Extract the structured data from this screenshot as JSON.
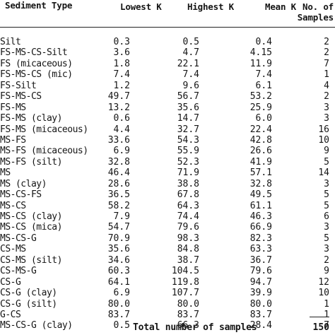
{
  "header": {
    "sediment_type": "Sediment Type",
    "lowest_k": "Lowest K",
    "highest_k": "Highest K",
    "mean_k": "Mean K",
    "samples_line1": "No. of",
    "samples_line2": "Samples"
  },
  "rows": [
    {
      "type": "Silt",
      "lowest": "0.3",
      "highest": "0.5",
      "mean": "0.4",
      "samples": "2"
    },
    {
      "type": "FS-MS-CS-Silt",
      "lowest": "3.6",
      "highest": "4.7",
      "mean": "4.15",
      "samples": "2"
    },
    {
      "type": "FS (micaceous)",
      "lowest": "1.8",
      "highest": "22.1",
      "mean": "11.9",
      "samples": "7"
    },
    {
      "type": "FS-MS-CS (mic)",
      "lowest": "7.4",
      "highest": "7.4",
      "mean": "7.4",
      "samples": "1"
    },
    {
      "type": "FS-Silt",
      "lowest": "1.2",
      "highest": "9.6",
      "mean": "6.1",
      "samples": "4"
    },
    {
      "type": "FS-MS-CS",
      "lowest": "49.7",
      "highest": "56.7",
      "mean": "53.2",
      "samples": "2"
    },
    {
      "type": "FS-MS",
      "lowest": "13.2",
      "highest": "35.6",
      "mean": "25.9",
      "samples": "3"
    },
    {
      "type": "FS-MS (clay)",
      "lowest": "0.6",
      "highest": "14.7",
      "mean": "6.0",
      "samples": "3"
    },
    {
      "type": "FS-MS (micaceous)",
      "lowest": "4.4",
      "highest": "32.7",
      "mean": "22.4",
      "samples": "16"
    },
    {
      "type": "MS-FS",
      "lowest": "33.6",
      "highest": "54.3",
      "mean": "42.8",
      "samples": "10"
    },
    {
      "type": "MS-FS (micaceous)",
      "lowest": "6.9",
      "highest": "55.9",
      "mean": "26.6",
      "samples": "9"
    },
    {
      "type": "MS-FS (silt)",
      "lowest": "32.8",
      "highest": "52.3",
      "mean": "41.9",
      "samples": "5"
    },
    {
      "type": "MS",
      "lowest": "46.4",
      "highest": "71.9",
      "mean": "57.1",
      "samples": "14"
    },
    {
      "type": "MS (clay)",
      "lowest": "28.6",
      "highest": "38.8",
      "mean": "32.8",
      "samples": "3"
    },
    {
      "type": "MS-CS-FS",
      "lowest": "36.5",
      "highest": "67.8",
      "mean": "49.5",
      "samples": "5"
    },
    {
      "type": "MS-CS",
      "lowest": "58.2",
      "highest": "64.3",
      "mean": "61.1",
      "samples": "5"
    },
    {
      "type": "MS-CS (clay)",
      "lowest": "7.9",
      "highest": "74.4",
      "mean": "46.3",
      "samples": "6"
    },
    {
      "type": "MS-CS (mica)",
      "lowest": "54.7",
      "highest": "79.6",
      "mean": "66.9",
      "samples": "3"
    },
    {
      "type": "MS-CS-G",
      "lowest": "70.9",
      "highest": "98.3",
      "mean": "82.3",
      "samples": "5"
    },
    {
      "type": "CS-MS",
      "lowest": "35.6",
      "highest": "84.8",
      "mean": "63.3",
      "samples": "3"
    },
    {
      "type": "CS-MS (silt)",
      "lowest": "34.6",
      "highest": "38.7",
      "mean": "36.7",
      "samples": "2"
    },
    {
      "type": "CS-MS-G",
      "lowest": "60.3",
      "highest": "104.5",
      "mean": "79.6",
      "samples": "9"
    },
    {
      "type": "CS-G",
      "lowest": "64.1",
      "highest": "119.8",
      "mean": "94.7",
      "samples": "12"
    },
    {
      "type": "CS-G (clay)",
      "lowest": "6.9",
      "highest": "107.7",
      "mean": "39.9",
      "samples": "10"
    },
    {
      "type": "CS-G (silt)",
      "lowest": "80.0",
      "highest": "80.0",
      "mean": "80.0",
      "samples": "1"
    },
    {
      "type": "G-CS",
      "lowest": "83.7",
      "highest": "83.7",
      "mean": "83.7",
      "samples": "1"
    },
    {
      "type": "MS-CS-G (clay)",
      "lowest": "0.5",
      "highest": "66.3",
      "mean": "28.4",
      "samples": "7"
    }
  ],
  "footer": {
    "total_label": "Total number of samples",
    "total_value": "150"
  }
}
